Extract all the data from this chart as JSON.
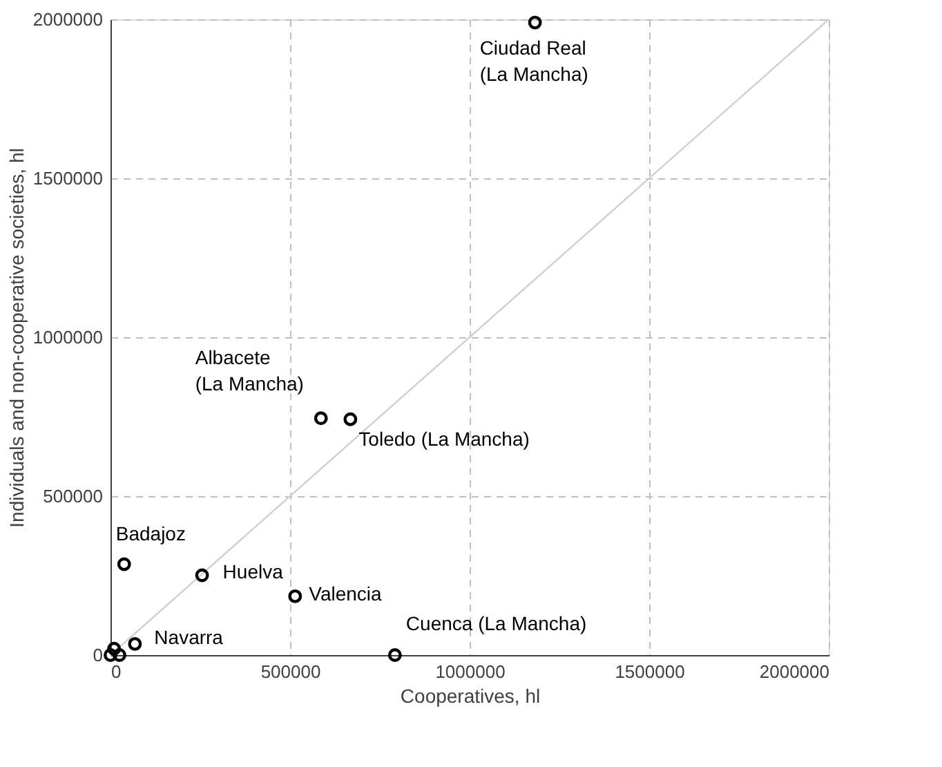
{
  "chart_data": {
    "type": "scatter",
    "xlabel": "Cooperatives, hl",
    "ylabel": "Individuals and non-cooperative societies, hl",
    "xlim": [
      0,
      2000000
    ],
    "ylim": [
      0,
      2000000
    ],
    "xticks": [
      0,
      500000,
      1000000,
      1500000,
      2000000
    ],
    "yticks": [
      0,
      500000,
      1000000,
      1500000,
      2000000
    ],
    "grid": true,
    "series": [
      {
        "type": "line",
        "color": "#d0d0d0",
        "line_style": "solid",
        "marker": "none",
        "x": [
          0,
          2000000
        ],
        "values": [
          0,
          2000000
        ]
      },
      {
        "color": "#000000",
        "marker": "circle",
        "x": [
          1182000,
          586000,
          668000,
          38000,
          255000,
          514000,
          68000,
          792000,
          0,
          25000,
          10000
        ],
        "values": [
          1990000,
          745000,
          742000,
          286000,
          251000,
          185000,
          35000,
          0,
          0,
          0,
          20000
        ]
      }
    ],
    "annotations": [
      {
        "text": "Ciudad Real\n(La Mancha)",
        "x": 1182000,
        "y": 1990000
      },
      {
        "text": "Albacete\n(La Mancha)",
        "x": 586000,
        "y": 745000
      },
      {
        "text": "Toledo  (La Mancha)",
        "x": 668000,
        "y": 742000
      },
      {
        "text": "Badajoz",
        "x": 38000,
        "y": 286000
      },
      {
        "text": "Huelva",
        "x": 255000,
        "y": 251000
      },
      {
        "text": "Valencia",
        "x": 514000,
        "y": 185000
      },
      {
        "text": "Navarra",
        "x": 68000,
        "y": 35000
      },
      {
        "text": "Cuenca  (La Mancha)",
        "x": 792000,
        "y": 0
      }
    ]
  }
}
